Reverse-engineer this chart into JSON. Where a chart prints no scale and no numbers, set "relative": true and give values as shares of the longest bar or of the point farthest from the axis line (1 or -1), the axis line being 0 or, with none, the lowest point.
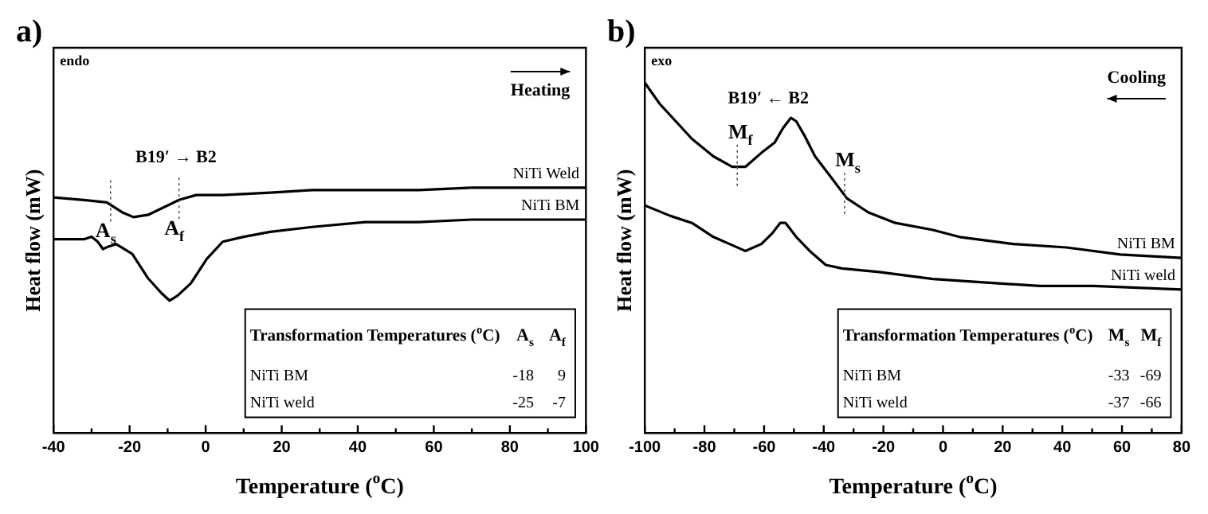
{
  "chart_data": [
    {
      "type": "line",
      "title": "a)",
      "xlabel": "Temperature ($^{o}$C)",
      "ylabel": "Heat flow (mW)",
      "relative": true,
      "legend": false,
      "marker": "none",
      "grid": false,
      "xlim": [
        -40,
        100
      ],
      "xticks": [
        -40,
        {
          "value": -30,
          "label": null
        },
        -20,
        {
          "value": -10,
          "label": null
        },
        0,
        {
          "value": 10,
          "label": null
        },
        20,
        {
          "value": 30,
          "label": null
        },
        40,
        {
          "value": 50,
          "label": null
        },
        60,
        {
          "value": 70,
          "label": null
        },
        80,
        {
          "value": 90,
          "label": null
        },
        100
      ],
      "series": [
        {
          "name": "NiTi Weld",
          "color": "#000000",
          "x": [
            -40,
            -32,
            -26,
            -22,
            -19,
            -15,
            -11,
            -7,
            -2.5,
            4.5,
            17,
            28,
            42,
            56,
            70,
            100
          ],
          "values": [
            0.96,
            0.95,
            0.94,
            0.9,
            0.88,
            0.89,
            0.92,
            0.95,
            0.97,
            0.97,
            0.98,
            0.99,
            0.99,
            0.99,
            1.0,
            1.0
          ]
        },
        {
          "name": "NiTi BM",
          "color": "#000000",
          "x": [
            -40,
            -32,
            -30,
            -28.4,
            -27,
            -25.6,
            -23.5,
            -19.3,
            -15.1,
            -11.6,
            -9.5,
            -7.4,
            -3.9,
            0.3,
            4.5,
            10,
            17,
            28,
            42,
            56,
            70,
            84,
            100
          ],
          "values": [
            0.79,
            0.79,
            0.8,
            0.78,
            0.75,
            0.76,
            0.77,
            0.73,
            0.63,
            0.57,
            0.54,
            0.56,
            0.61,
            0.71,
            0.78,
            0.8,
            0.82,
            0.84,
            0.86,
            0.86,
            0.87,
            0.87,
            0.87
          ]
        }
      ],
      "annotations": [
        "endo",
        "Heating",
        "B19′ → B2",
        "Transformation Temperatures ($^{o}$C)",
        "A$_{s}$",
        "A$_{f}$",
        "NiTi BM",
        "-18",
        "9",
        "NiTi weld",
        "-25",
        "-7",
        {
          "text": "A$_{s}$",
          "x": -25,
          "y": 0.94
        },
        {
          "text": "A$_{f}$",
          "x": -7,
          "y": 0.95
        }
      ]
    },
    {
      "type": "line",
      "title": "b)",
      "xlabel": "Temperature ($^{o}$C)",
      "ylabel": "Heat flow (mW)",
      "relative": true,
      "legend": false,
      "marker": "none",
      "grid": false,
      "xlim": [
        -100,
        80
      ],
      "xticks": [
        -100,
        {
          "value": -90,
          "label": null
        },
        -80,
        {
          "value": -70,
          "label": null
        },
        -60,
        {
          "value": -50,
          "label": null
        },
        -40,
        {
          "value": -30,
          "label": null
        },
        -20,
        {
          "value": -10,
          "label": null
        },
        0,
        {
          "value": 10,
          "label": null
        },
        20,
        {
          "value": 30,
          "label": null
        },
        40,
        {
          "value": 50,
          "label": null
        },
        60,
        {
          "value": 70,
          "label": null
        },
        80
      ],
      "series": [
        {
          "name": "NiTi BM",
          "color": "#000000",
          "x": [
            -100,
            -95,
            -89.6,
            -84.2,
            -77,
            -70.7,
            -66.3,
            -60.9,
            -56.4,
            -53.7,
            -51,
            -49.2,
            -46.5,
            -42.9,
            -37.5,
            -32.2,
            -25,
            -16,
            -3.4,
            5.5,
            23.5,
            41.4,
            59.4,
            80
          ],
          "values": [
            1,
            0.94,
            0.89,
            0.84,
            0.79,
            0.76,
            0.76,
            0.8,
            0.83,
            0.87,
            0.9,
            0.89,
            0.85,
            0.79,
            0.73,
            0.67,
            0.63,
            0.6,
            0.58,
            0.56,
            0.54,
            0.53,
            0.51,
            0.5
          ]
        },
        {
          "name": "NiTi weld",
          "color": "#000000",
          "x": [
            -100,
            -91.4,
            -84.2,
            -77,
            -71.6,
            -66.3,
            -60.9,
            -57.3,
            -54.6,
            -52.8,
            -49.2,
            -44.7,
            -39.3,
            -33.9,
            -21.4,
            -3.4,
            14.5,
            32.4,
            50.4,
            80
          ],
          "values": [
            0.65,
            0.62,
            0.6,
            0.56,
            0.54,
            0.52,
            0.54,
            0.57,
            0.6,
            0.6,
            0.56,
            0.52,
            0.48,
            0.47,
            0.46,
            0.44,
            0.43,
            0.42,
            0.42,
            0.41
          ]
        }
      ],
      "annotations": [
        "exo",
        "Cooling",
        "B19′ ← B2",
        "Transformation Temperatures ($^{o}$C)",
        "M$_{s}$",
        "M$_{f}$",
        "NiTi BM",
        "-33",
        "-69",
        "NiTi weld",
        "-37",
        "-66",
        {
          "text": "M$_{f}$",
          "x": -69,
          "y": 0.76
        },
        {
          "text": "M$_{s}$",
          "x": -33,
          "y": 0.68
        }
      ]
    }
  ]
}
